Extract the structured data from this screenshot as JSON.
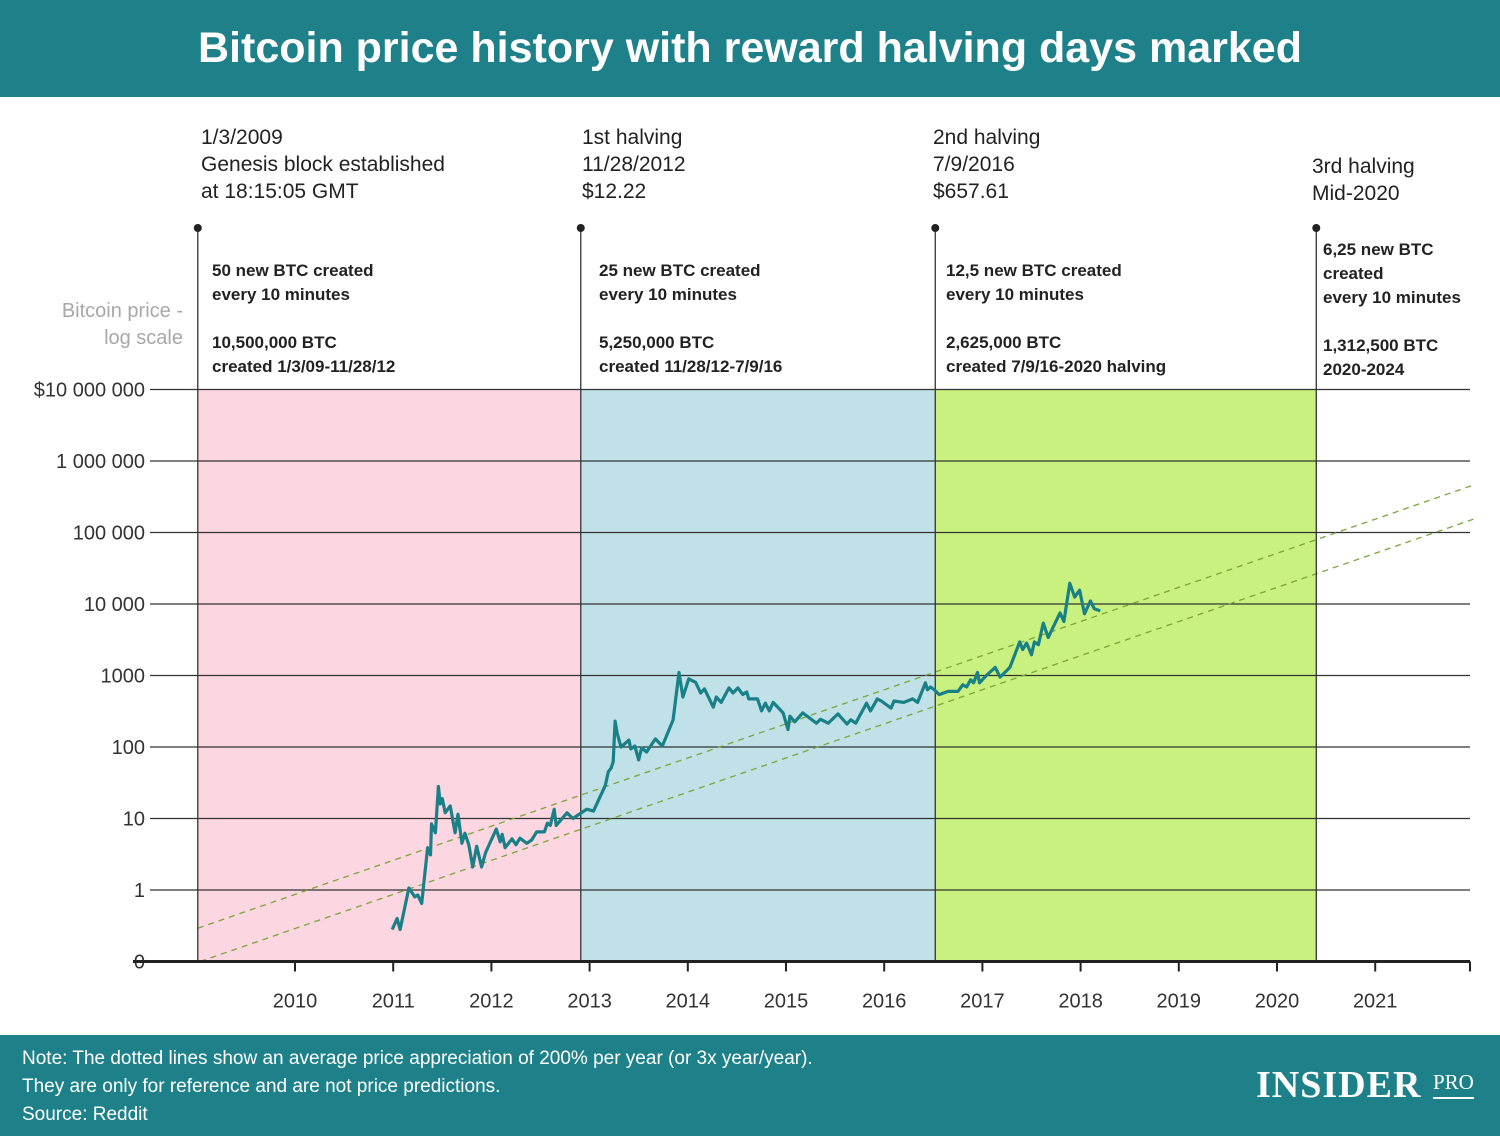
{
  "header": {
    "title": "Bitcoin price history with reward halving days marked"
  },
  "y_axis_title": [
    "Bitcoin price -",
    "log scale"
  ],
  "eras": [
    {
      "head": [
        "1/3/2009",
        "Genesis block established",
        "at 18:15:05 GMT"
      ],
      "body": [
        "50 new BTC created",
        "every 10 minutes",
        "",
        "10,500,000 BTC",
        "created 1/3/09-11/28/12"
      ],
      "color": "#fcd6e0"
    },
    {
      "head": [
        "1st halving",
        "11/28/2012",
        "$12.22"
      ],
      "body": [
        "25 new BTC created",
        "every 10 minutes",
        "",
        "5,250,000 BTC",
        "created 11/28/12-7/9/16"
      ],
      "color": "#bfe1e7"
    },
    {
      "head": [
        "2nd halving",
        "7/9/2016",
        "$657.61"
      ],
      "body": [
        "12,5 new BTC created",
        "every 10 minutes",
        "",
        "2,625,000 BTC",
        "created 7/9/16-2020 halving"
      ],
      "color": "#c8f17f"
    },
    {
      "head": [
        "3rd halving",
        "Mid-2020"
      ],
      "body": [
        "6,25 new BTC",
        "created",
        "every 10 minutes",
        "",
        "1,312,500 BTC",
        "2020-2024"
      ],
      "color": "#ffffff"
    }
  ],
  "chart_data": {
    "type": "line",
    "title": "Bitcoin price history with reward halving days marked",
    "ylabel": "Bitcoin price - log scale",
    "y_scale": "log",
    "ylim": [
      0.1,
      10000000
    ],
    "y_ticks": [
      {
        "value": 0.1,
        "label": "0"
      },
      {
        "value": 1,
        "label": "1"
      },
      {
        "value": 10,
        "label": "10"
      },
      {
        "value": 100,
        "label": "100"
      },
      {
        "value": 1000,
        "label": "1000"
      },
      {
        "value": 10000,
        "label": "10 000"
      },
      {
        "value": 100000,
        "label": "100 000"
      },
      {
        "value": 1000000,
        "label": "1 000 000"
      },
      {
        "value": 10000000,
        "label": "$10 000 000"
      }
    ],
    "xlim": [
      2009.0,
      2022.0
    ],
    "x_ticks": [
      "2010",
      "2011",
      "2012",
      "2013",
      "2014",
      "2015",
      "2016",
      "2017",
      "2018",
      "2019",
      "2020",
      "2021"
    ],
    "grid": "horizontal",
    "eras": [
      {
        "start": 2009.01,
        "end": 2012.91
      },
      {
        "start": 2012.91,
        "end": 2016.52
      },
      {
        "start": 2016.52,
        "end": 2020.4
      },
      {
        "start": 2020.4,
        "end": 2022.0
      }
    ],
    "event_markers": [
      2009.01,
      2012.91,
      2016.52,
      2020.4
    ],
    "reference_lines": [
      {
        "style": "dashed",
        "growth_per_year": 3,
        "price_1_at": 2010.13
      },
      {
        "style": "dashed",
        "growth_per_year": 3,
        "price_1_at": 2011.13
      }
    ],
    "series": [
      {
        "color": "#1a8087",
        "points": [
          [
            2010.99,
            0.28
          ],
          [
            2011.04,
            0.4
          ],
          [
            2011.07,
            0.28
          ],
          [
            2011.16,
            1.07
          ],
          [
            2011.22,
            0.8
          ],
          [
            2011.25,
            0.85
          ],
          [
            2011.29,
            0.65
          ],
          [
            2011.35,
            3.9
          ],
          [
            2011.38,
            3.1
          ],
          [
            2011.39,
            8.4
          ],
          [
            2011.43,
            6.3
          ],
          [
            2011.46,
            28
          ],
          [
            2011.48,
            16
          ],
          [
            2011.5,
            19
          ],
          [
            2011.53,
            12
          ],
          [
            2011.58,
            15
          ],
          [
            2011.63,
            6.3
          ],
          [
            2011.66,
            11.5
          ],
          [
            2011.7,
            4.5
          ],
          [
            2011.73,
            6.2
          ],
          [
            2011.77,
            4.3
          ],
          [
            2011.81,
            2.1
          ],
          [
            2011.85,
            4.1
          ],
          [
            2011.9,
            2.1
          ],
          [
            2011.94,
            3.3
          ],
          [
            2011.99,
            4.7
          ],
          [
            2012.05,
            7.1
          ],
          [
            2012.09,
            4.7
          ],
          [
            2012.11,
            6
          ],
          [
            2012.14,
            3.9
          ],
          [
            2012.21,
            5.2
          ],
          [
            2012.25,
            4.3
          ],
          [
            2012.29,
            5.3
          ],
          [
            2012.36,
            4.5
          ],
          [
            2012.41,
            5
          ],
          [
            2012.46,
            6.5
          ],
          [
            2012.54,
            6.5
          ],
          [
            2012.57,
            8.6
          ],
          [
            2012.6,
            8
          ],
          [
            2012.64,
            13.5
          ],
          [
            2012.66,
            8
          ],
          [
            2012.77,
            12
          ],
          [
            2012.83,
            10
          ],
          [
            2012.97,
            13.5
          ],
          [
            2013.04,
            12.7
          ],
          [
            2013.16,
            29
          ],
          [
            2013.19,
            45
          ],
          [
            2013.22,
            51
          ],
          [
            2013.24,
            62
          ],
          [
            2013.26,
            230
          ],
          [
            2013.28,
            157
          ],
          [
            2013.32,
            100
          ],
          [
            2013.4,
            125
          ],
          [
            2013.42,
            94
          ],
          [
            2013.46,
            103
          ],
          [
            2013.5,
            66
          ],
          [
            2013.53,
            97
          ],
          [
            2013.58,
            85
          ],
          [
            2013.67,
            130
          ],
          [
            2013.74,
            103
          ],
          [
            2013.85,
            240
          ],
          [
            2013.91,
            1100
          ],
          [
            2013.95,
            500
          ],
          [
            2014.01,
            900
          ],
          [
            2014.08,
            800
          ],
          [
            2014.13,
            570
          ],
          [
            2014.17,
            650
          ],
          [
            2014.26,
            360
          ],
          [
            2014.29,
            500
          ],
          [
            2014.34,
            420
          ],
          [
            2014.42,
            670
          ],
          [
            2014.46,
            570
          ],
          [
            2014.51,
            670
          ],
          [
            2014.56,
            540
          ],
          [
            2014.6,
            590
          ],
          [
            2014.62,
            470
          ],
          [
            2014.71,
            470
          ],
          [
            2014.75,
            320
          ],
          [
            2014.79,
            410
          ],
          [
            2014.83,
            320
          ],
          [
            2014.87,
            420
          ],
          [
            2014.97,
            300
          ],
          [
            2015.02,
            175
          ],
          [
            2015.04,
            270
          ],
          [
            2015.09,
            225
          ],
          [
            2015.17,
            300
          ],
          [
            2015.31,
            215
          ],
          [
            2015.35,
            245
          ],
          [
            2015.43,
            215
          ],
          [
            2015.53,
            290
          ],
          [
            2015.62,
            210
          ],
          [
            2015.66,
            240
          ],
          [
            2015.71,
            215
          ],
          [
            2015.82,
            410
          ],
          [
            2015.86,
            320
          ],
          [
            2015.93,
            470
          ],
          [
            2015.97,
            440
          ],
          [
            2016.07,
            350
          ],
          [
            2016.1,
            440
          ],
          [
            2016.2,
            420
          ],
          [
            2016.29,
            470
          ],
          [
            2016.34,
            420
          ],
          [
            2016.42,
            790
          ],
          [
            2016.44,
            630
          ],
          [
            2016.47,
            690
          ],
          [
            2016.51,
            630
          ],
          [
            2016.56,
            540
          ],
          [
            2016.65,
            600
          ],
          [
            2016.75,
            600
          ],
          [
            2016.8,
            740
          ],
          [
            2016.84,
            690
          ],
          [
            2016.88,
            870
          ],
          [
            2016.91,
            790
          ],
          [
            2016.95,
            1100
          ],
          [
            2016.97,
            790
          ],
          [
            2017.04,
            1000
          ],
          [
            2017.13,
            1300
          ],
          [
            2017.18,
            950
          ],
          [
            2017.28,
            1300
          ],
          [
            2017.38,
            2950
          ],
          [
            2017.41,
            2300
          ],
          [
            2017.45,
            2850
          ],
          [
            2017.5,
            1950
          ],
          [
            2017.53,
            2950
          ],
          [
            2017.57,
            2700
          ],
          [
            2017.62,
            5400
          ],
          [
            2017.67,
            3400
          ],
          [
            2017.79,
            7500
          ],
          [
            2017.83,
            5700
          ],
          [
            2017.89,
            19500
          ],
          [
            2017.94,
            12500
          ],
          [
            2017.99,
            15600
          ],
          [
            2018.04,
            7300
          ],
          [
            2018.1,
            11000
          ],
          [
            2018.14,
            8600
          ],
          [
            2018.2,
            8000
          ]
        ]
      }
    ]
  },
  "footer": {
    "note": [
      "Note: The dotted lines show an average price appreciation of 200% per year (or 3x year/year).",
      "They are only for reference and are not price predictions.",
      "Source: Reddit"
    ],
    "logo": "INSIDER",
    "logo_sub": "PRO"
  },
  "colors": {
    "brand": "#1e8189",
    "line": "#1a8087",
    "reference": "#7aa53a"
  }
}
